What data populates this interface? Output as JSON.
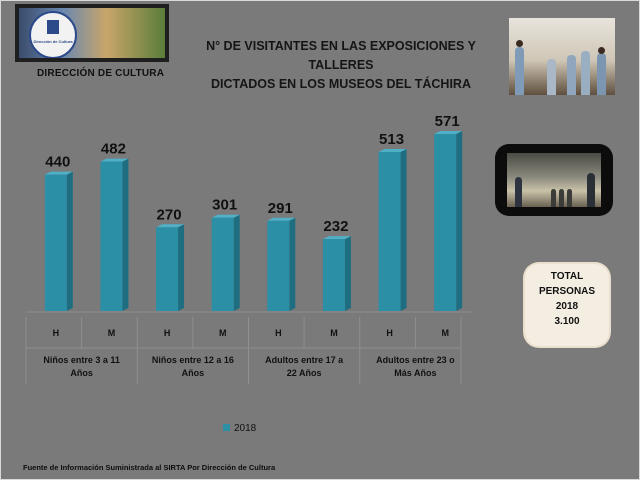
{
  "header": {
    "logo_text": "Dirección de Cultura",
    "department": "DIRECCIÓN DE CULTURA",
    "title_line1": "N° DE VISITANTES EN LAS EXPOSICIONES Y TALLERES",
    "title_line2": "DICTADOS EN LOS MUSEOS DEL TÁCHIRA"
  },
  "total_box": {
    "line1": "TOTAL",
    "line2": "PERSONAS",
    "line3": "2018",
    "line4": "3.100"
  },
  "source": "Fuente de Información Suministrada al SIRTA Por Dirección de Cultura",
  "colors": {
    "bar": "#2b8fa6",
    "background": "#7a7a7a"
  },
  "chart_data": {
    "type": "bar",
    "title": "N° DE VISITANTES EN LAS EXPOSICIONES Y TALLERES DICTADOS EN LOS MUSEOS DEL TÁCHIRA",
    "groups": [
      {
        "label": "Niños entre 3 a 11 Años",
        "categories": [
          "H",
          "M"
        ],
        "values": [
          440,
          482
        ]
      },
      {
        "label": "Niños entre 12 a 16 Años",
        "categories": [
          "H",
          "M"
        ],
        "values": [
          270,
          301
        ]
      },
      {
        "label": "Adultos entre 17 a 22 Años",
        "categories": [
          "H",
          "M"
        ],
        "values": [
          291,
          232
        ]
      },
      {
        "label": "Adultos entre 23 o Más Años",
        "categories": [
          "H",
          "M"
        ],
        "values": [
          513,
          571
        ]
      }
    ],
    "series": [
      {
        "name": "2018"
      }
    ],
    "ylim": [
      0,
      600
    ],
    "grid": false,
    "legend": "bottom-center"
  }
}
